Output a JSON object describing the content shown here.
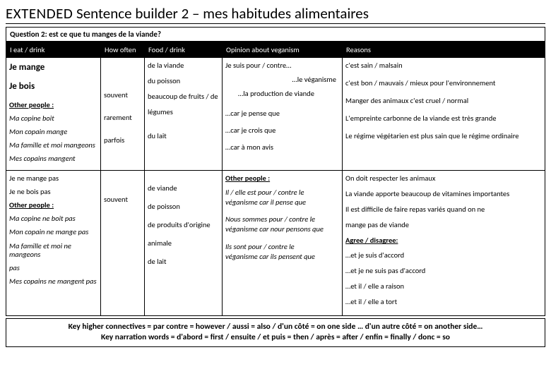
{
  "title_prefix": "EXTENDED",
  "title_rest": " Sentence builder 2 – mes habitudes alimentaires",
  "question": "Question 2: est ce que tu manges de la viande?",
  "headers": [
    "I eat / drink",
    "How often",
    "Food / drink",
    "Opinion about veganism",
    "Reasons"
  ],
  "col1": {
    "r1": [
      {
        "t": "Je mange",
        "cls": "bold",
        "big": true
      },
      {
        "t": "Je bois",
        "cls": "bold",
        "big": true
      },
      {
        "t": "Other people :",
        "cls": "bold und"
      },
      {
        "t": "Ma copine boit",
        "cls": "italic"
      },
      {
        "t": "Mon copain mange",
        "cls": "italic"
      },
      {
        "t": "Ma famille et moi mangeons",
        "cls": "italic"
      },
      {
        "t": "Mes copains mangent",
        "cls": "italic"
      }
    ],
    "r2": [
      {
        "t": "Je ne mange pas",
        "cls": ""
      },
      {
        "t": "Je ne bois pas",
        "cls": ""
      },
      {
        "t": "Other people :",
        "cls": "bold und"
      },
      {
        "t": "Ma copine ne boit pas",
        "cls": "italic"
      },
      {
        "t": "Mon copain ne mange pas",
        "cls": "italic"
      },
      {
        "t": "Ma famille et moi ne mangeons",
        "cls": "italic"
      },
      {
        "t": "pas",
        "cls": "italic"
      },
      {
        "t": "Mes copains ne mangent pas",
        "cls": "italic"
      }
    ]
  },
  "col2": {
    "r1": [
      "souvent",
      "rarement",
      "parfois"
    ],
    "r2": [
      "souvent"
    ]
  },
  "col3": {
    "r1": [
      "de la viande",
      "du poisson",
      "beaucoup de fruits / de",
      "légumes",
      "du lait"
    ],
    "r2": [
      "de viande",
      "de poisson",
      "de produits d'origine",
      "animale",
      "de lait"
    ]
  },
  "col4": {
    "r1": [
      "Je suis pour / contre…",
      "…le véganisme",
      "…la production de viande",
      "…car je pense que",
      "…car je crois que",
      "…car à mon avis"
    ],
    "r2_top": "Other people :",
    "r2": [
      "Il / elle est pour / contre le",
      "véganisme car il pense que",
      "Nous sommes pour / contre le",
      "véganisme car nour pensons que",
      "Ils sont pour / contre le",
      "véganisme car ils pensent que"
    ]
  },
  "col5": {
    "r1": [
      "c'est sain / malsain",
      "c'est bon / mauvais / mieux  pour l'environnement",
      "Manger des animaux c'est cruel / normal",
      "L'empreinte carbonne de la viande est très grande",
      "Le régime végétarien est plus sain que le régime ordinaire"
    ],
    "r2": [
      "On doit respecter les animaux",
      "La viande apporte beaucoup de vitamines importantes",
      "Il est difficile de faire repas variés quand on ne",
      "mange pas de viande",
      {
        "t": "Agree / disagree:",
        "cls": "bold und"
      },
      "…et je suis d'accord",
      "…et je ne suis pas d'accord",
      "…et il / elle a raison",
      "…et il / elle a tort"
    ]
  },
  "key_line1": "Key higher connectives = par contre = however / aussi = also  / d'un côté = on one side … d'un autre côté = on another side…",
  "key_line2": "Key narration words = d'abord = first / ensuite / et puis = then / après = after / enfin = finally / donc = so"
}
